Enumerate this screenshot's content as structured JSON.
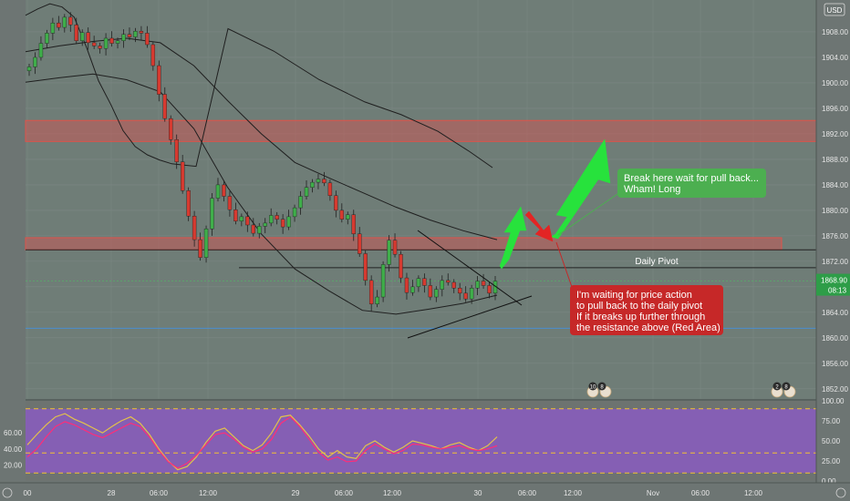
{
  "chart_data": {
    "type": "candlestick",
    "title": "",
    "currency_badge": "USD",
    "xlabel": "",
    "ylabel": "",
    "ylim": [
      1850.4,
      1913.0
    ],
    "grid": true,
    "y_ticks": [
      "1908.00",
      "1904.00",
      "1900.00",
      "1896.00",
      "1892.00",
      "1888.00",
      "1884.00",
      "1880.00",
      "1876.00",
      "1872.00",
      "1868.00",
      "1864.00",
      "1860.00",
      "1856.00",
      "1852.00"
    ],
    "x_ticks": [
      "00",
      "28",
      "06:00",
      "12:00",
      "29",
      "06:00",
      "12:00",
      "30",
      "06:00",
      "12:00",
      "Nov",
      "06:00",
      "12:00"
    ],
    "last_price": "1868.90",
    "countdown": "08:13",
    "resistance_zones": [
      {
        "from": 1890.8,
        "to": 1894.1,
        "color": "#d9534f"
      },
      {
        "from": 1873.8,
        "to": 1875.7,
        "color": "#d9534f"
      }
    ],
    "horizontal_lines": [
      {
        "label": "Daily Pivot",
        "value": 1871.0
      },
      {
        "label": "",
        "value": 1873.8
      },
      {
        "label": "",
        "value": 1861.5
      }
    ],
    "candle_closes": [
      1902.5,
      1904.0,
      1906.2,
      1907.8,
      1909.4,
      1908.7,
      1910.3,
      1909.1,
      1906.6,
      1907.9,
      1906.3,
      1905.8,
      1905.4,
      1907.0,
      1906.2,
      1906.6,
      1907.6,
      1907.2,
      1908.1,
      1907.8,
      1906.0,
      1902.7,
      1898.2,
      1894.4,
      1891.1,
      1887.6,
      1883.1,
      1879.1,
      1875.4,
      1872.6,
      1877.1,
      1881.9,
      1884.0,
      1882.2,
      1880.1,
      1878.3,
      1879.0,
      1877.7,
      1876.4,
      1877.5,
      1878.0,
      1879.2,
      1878.6,
      1877.4,
      1879.0,
      1880.4,
      1882.2,
      1883.6,
      1884.4,
      1884.9,
      1884.3,
      1882.3,
      1880.0,
      1878.6,
      1879.3,
      1876.3,
      1873.2,
      1869.0,
      1865.3,
      1866.4,
      1871.5,
      1875.3,
      1873.1,
      1869.4,
      1867.1,
      1868.0,
      1869.3,
      1868.2,
      1866.4,
      1867.6,
      1869.0,
      1868.7,
      1867.8,
      1867.0,
      1866.1,
      1867.8,
      1868.9,
      1868.2,
      1867.0,
      1868.9
    ],
    "moving_averages": [
      {
        "name": "upper band",
        "values": [
          1910.6,
          1911.6,
          1912.4,
          1911.9,
          1910.3,
          1905.6,
          1900.3,
          1896.6,
          1892.5,
          1890.0,
          1888.7,
          1887.9,
          1887.3,
          1887.1,
          1886.9
        ]
      },
      {
        "name": "middle line",
        "values": [
          1904.9,
          1905.8,
          1906.5,
          1907.0,
          1906.3,
          1902.7,
          1897.2,
          1892.0,
          1887.5,
          1885.1,
          1882.8,
          1880.5,
          1878.5,
          1876.8,
          1875.4
        ]
      },
      {
        "name": "lower band",
        "values": [
          1900.1,
          1900.8,
          1901.4,
          1900.5,
          1898.6,
          1892.8,
          1883.6,
          1876.3,
          1870.8,
          1867.4,
          1864.3,
          1863.7,
          1864.5,
          1865.4,
          1866.7
        ]
      }
    ],
    "annotations": [
      {
        "text": [
          "Break here wait for pull back...",
          "Wham! Long"
        ],
        "color": "#4caf50"
      },
      {
        "text": [
          "I'm waiting for price action",
          "to pull back to the daily pivot",
          "If it breaks up further through",
          "the resistance above (Red Area)"
        ],
        "color": "#c62828"
      }
    ],
    "indicator": {
      "name": "oscillator",
      "ylim": [
        0,
        100
      ],
      "y_ticks": [
        "100.00",
        "75.00",
        "50.00",
        "25.00",
        "0.00"
      ],
      "left_ticks": [
        "60.00",
        "40.00",
        "20.00"
      ],
      "levels": [
        90,
        35,
        10
      ],
      "series": [
        {
          "name": "",
          "color": "#e3c24a",
          "values": [
            45,
            58,
            70,
            80,
            84,
            77,
            72,
            66,
            60,
            68,
            75,
            80,
            72,
            58,
            40,
            25,
            14,
            18,
            30,
            48,
            62,
            66,
            55,
            44,
            38,
            45,
            60,
            80,
            82,
            70,
            56,
            40,
            30,
            38,
            30,
            28,
            44,
            50,
            42,
            36,
            42,
            50,
            47,
            44,
            40,
            45,
            48,
            42,
            38,
            44,
            55
          ]
        },
        {
          "name": "",
          "color": "#ff2d78",
          "values": [
            30,
            40,
            55,
            68,
            74,
            70,
            64,
            58,
            54,
            60,
            66,
            72,
            68,
            55,
            38,
            24,
            16,
            22,
            32,
            45,
            58,
            60,
            52,
            42,
            36,
            40,
            52,
            72,
            80,
            68,
            52,
            36,
            26,
            30,
            24,
            25,
            38,
            46,
            40,
            34,
            38,
            46,
            45,
            42,
            40,
            42,
            44,
            40,
            38,
            40,
            44
          ]
        }
      ]
    },
    "event_badges": [
      {
        "values": [
          "10",
          "8"
        ]
      },
      {
        "values": [
          "2",
          "8"
        ]
      }
    ]
  }
}
